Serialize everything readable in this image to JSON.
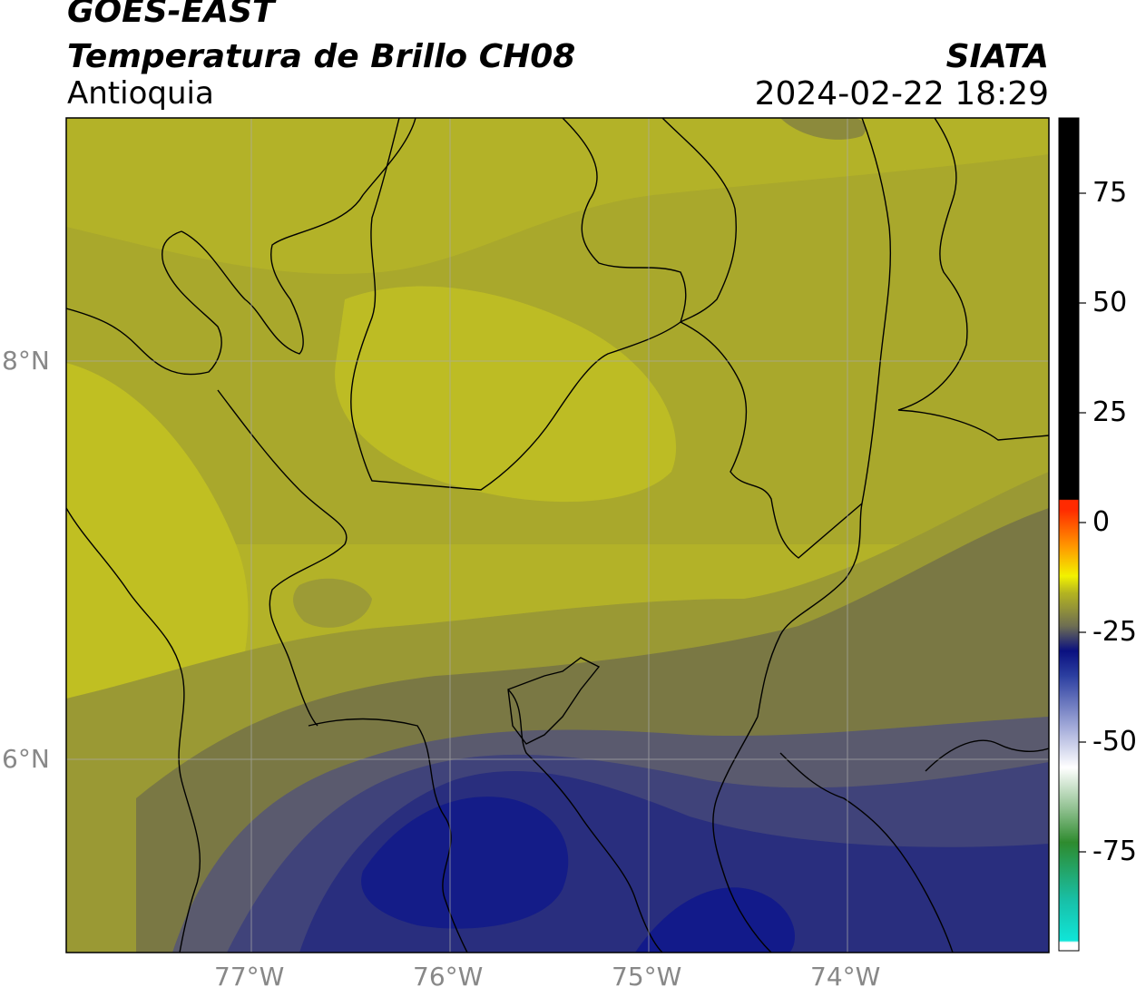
{
  "title": {
    "line1": "GOES-EAST",
    "line2": "Temperatura de Brillo CH08",
    "line3": "Antioquia",
    "source": "SIATA",
    "datetime": "2024-02-22 18:29"
  },
  "map": {
    "x_ticks": [
      "77°W",
      "76°W",
      "75°W",
      "74°W"
    ],
    "y_ticks": [
      "8°N",
      "6°N"
    ],
    "lon_range": [
      -77.95,
      -73.0
    ],
    "lat_range": [
      5.05,
      9.25
    ],
    "gridlines": true
  },
  "colorbar": {
    "ticks": [
      "75",
      "50",
      "25",
      "0",
      "-25",
      "-50",
      "-75"
    ],
    "range": [
      -93,
      92
    ],
    "colors": {
      "black": "#000000",
      "red": "#ff2a00",
      "orange": "#ff9900",
      "yellow": "#f2f200",
      "olive": "#b5b520",
      "gray": "#6e6e52",
      "navy": "#0a1080",
      "blue": "#2c3fa0",
      "white": "#ffffff",
      "green": "#2e8b2e",
      "cyan": "#10e5d8"
    }
  },
  "palette": {
    "olive_light": "#c3c21f",
    "olive": "#b5b428",
    "olive_dark": "#a3a22c",
    "khaki": "#8f8d38",
    "gray_olive": "#6f6d4a",
    "slate": "#55557a",
    "indigo": "#3b3f7a",
    "navy": "#24297a",
    "deep_navy": "#101a86"
  }
}
